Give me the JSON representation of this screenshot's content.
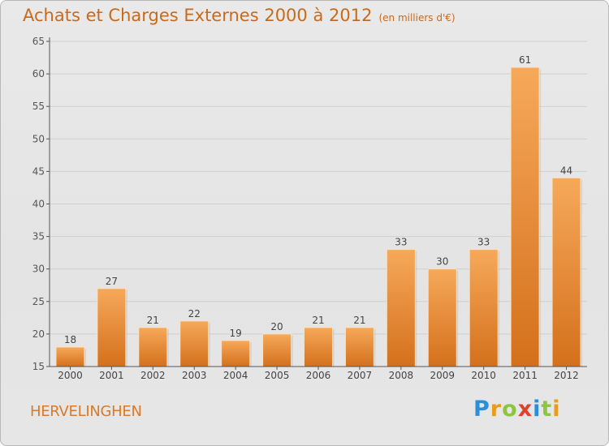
{
  "header": {
    "title": "Achats et Charges Externes 2000 à 2012",
    "unit": "(en milliers d'€)"
  },
  "footer": {
    "commune": "HERVELINGHEN",
    "logo": "Proxiti"
  },
  "colors": {
    "bar_top": "#f6a95a",
    "bar_bottom": "#d4701c",
    "title": "#c96a1b",
    "axis": "#555555",
    "grid": "#cfcfcf"
  },
  "chart_data": {
    "type": "bar",
    "title": "Achats et Charges Externes 2000 à 2012",
    "xlabel": "",
    "ylabel": "",
    "categories": [
      "2000",
      "2001",
      "2002",
      "2003",
      "2004",
      "2005",
      "2006",
      "2007",
      "2008",
      "2009",
      "2010",
      "2011",
      "2012"
    ],
    "values": [
      18,
      27,
      21,
      22,
      19,
      20,
      21,
      21,
      33,
      30,
      33,
      61,
      44
    ],
    "ylim": [
      15,
      65
    ],
    "yticks": [
      15,
      20,
      25,
      30,
      35,
      40,
      45,
      50,
      55,
      60,
      65
    ],
    "grid": true
  }
}
